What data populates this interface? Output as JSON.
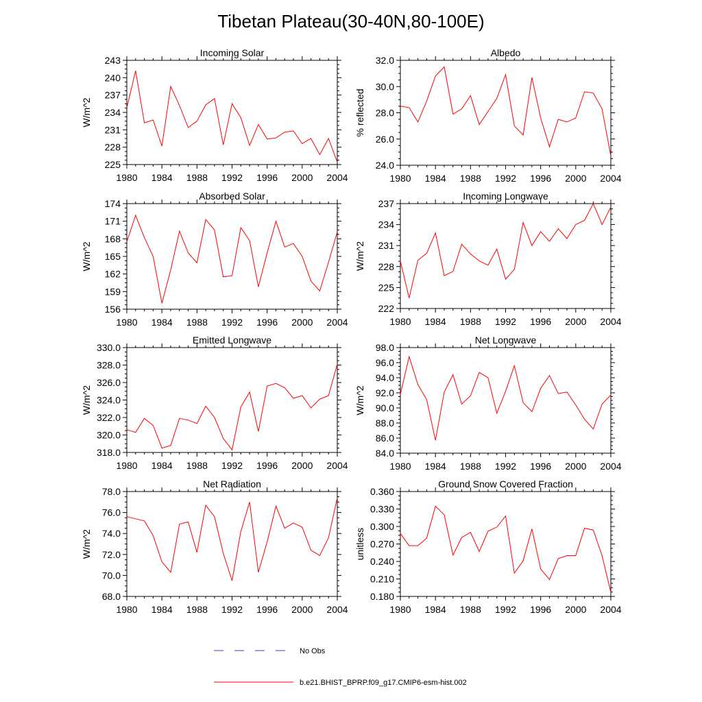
{
  "figure_title": "Tibetan Plateau(30-40N,80-100E)",
  "colors": {
    "model": "#ff0000",
    "obs": "#3a3acf",
    "axes": "#000000"
  },
  "legend": {
    "obs_label": "No Obs",
    "model_label": "b.e21.BHIST_BPRP.f09_g17.CMIP6-esm-hist.002"
  },
  "chart_data": [
    {
      "type": "line",
      "title": "Incoming Solar",
      "ylabel": "W/m^2",
      "xlim": [
        1980,
        2004
      ],
      "ylim": [
        225,
        243
      ],
      "x_ticks": [
        1980,
        1984,
        1988,
        1992,
        1996,
        2000,
        2004
      ],
      "y_ticks": [
        225,
        228,
        231,
        234,
        237,
        240,
        243
      ],
      "y_tick_labels": [
        "225",
        "228",
        "231",
        "234",
        "237",
        "240",
        "243"
      ],
      "x": [
        1980,
        1981,
        1982,
        1983,
        1984,
        1985,
        1986,
        1987,
        1988,
        1989,
        1990,
        1991,
        1992,
        1993,
        1994,
        1995,
        1996,
        1997,
        1998,
        1999,
        2000,
        2001,
        2002,
        2003,
        2004
      ],
      "series": [
        {
          "values": [
            234.8,
            241.2,
            232.2,
            232.7,
            228.2,
            238.5,
            235.2,
            231.4,
            232.5,
            235.3,
            236.4,
            228.4,
            235.5,
            233.1,
            228.3,
            231.9,
            229.4,
            229.6,
            230.6,
            230.8,
            228.6,
            229.5,
            226.7,
            229.5,
            225.4
          ]
        }
      ]
    },
    {
      "type": "line",
      "title": "Albedo",
      "ylabel": "% reflected",
      "xlim": [
        1980,
        2004
      ],
      "ylim": [
        24,
        32
      ],
      "x_ticks": [
        1980,
        1984,
        1988,
        1992,
        1996,
        2000,
        2004
      ],
      "y_ticks": [
        24,
        26,
        28,
        30,
        32
      ],
      "y_tick_labels": [
        "24.0",
        "26.0",
        "28.0",
        "30.0",
        "32.0"
      ],
      "x": [
        1980,
        1981,
        1982,
        1983,
        1984,
        1985,
        1986,
        1987,
        1988,
        1989,
        1990,
        1991,
        1992,
        1993,
        1994,
        1995,
        1996,
        1997,
        1998,
        1999,
        2000,
        2001,
        2002,
        2003,
        2004
      ],
      "series": [
        {
          "values": [
            28.5,
            28.4,
            27.3,
            28.9,
            30.8,
            31.5,
            27.9,
            28.3,
            29.3,
            27.1,
            28.1,
            29.1,
            30.9,
            27.0,
            26.3,
            30.7,
            27.6,
            25.4,
            27.5,
            27.3,
            27.6,
            29.6,
            29.5,
            28.3,
            24.7
          ]
        }
      ]
    },
    {
      "type": "line",
      "title": "Absorbed Solar",
      "ylabel": "W/m^2",
      "xlim": [
        1980,
        2004
      ],
      "ylim": [
        156,
        174
      ],
      "x_ticks": [
        1980,
        1984,
        1988,
        1992,
        1996,
        2000,
        2004
      ],
      "y_ticks": [
        156,
        159,
        162,
        165,
        168,
        171,
        174
      ],
      "y_tick_labels": [
        "156",
        "159",
        "162",
        "165",
        "168",
        "171",
        "174"
      ],
      "x": [
        1980,
        1981,
        1982,
        1983,
        1984,
        1985,
        1986,
        1987,
        1988,
        1989,
        1990,
        1991,
        1992,
        1993,
        1994,
        1995,
        1996,
        1997,
        1998,
        1999,
        2000,
        2001,
        2002,
        2003,
        2004
      ],
      "series": [
        {
          "values": [
            167.5,
            172.0,
            168.2,
            165.0,
            157.0,
            162.7,
            169.3,
            165.6,
            163.9,
            171.3,
            169.5,
            161.5,
            161.7,
            169.9,
            167.7,
            159.8,
            165.6,
            171.0,
            166.6,
            167.2,
            165.0,
            160.8,
            159.1,
            164.0,
            169.2
          ]
        }
      ]
    },
    {
      "type": "line",
      "title": "Incoming Longwave",
      "ylabel": "W/m^2",
      "xlim": [
        1980,
        2004
      ],
      "ylim": [
        222,
        237
      ],
      "x_ticks": [
        1980,
        1984,
        1988,
        1992,
        1996,
        2000,
        2004
      ],
      "y_ticks": [
        222,
        225,
        228,
        231,
        234,
        237
      ],
      "y_tick_labels": [
        "222",
        "225",
        "228",
        "231",
        "234",
        "237"
      ],
      "x": [
        1980,
        1981,
        1982,
        1983,
        1984,
        1985,
        1986,
        1987,
        1988,
        1989,
        1990,
        1991,
        1992,
        1993,
        1994,
        1995,
        1996,
        1997,
        1998,
        1999,
        2000,
        2001,
        2002,
        2003,
        2004
      ],
      "series": [
        {
          "values": [
            228.8,
            223.5,
            228.9,
            229.9,
            232.8,
            226.7,
            227.3,
            231.2,
            229.8,
            228.8,
            228.2,
            230.5,
            226.2,
            227.6,
            234.3,
            231.0,
            233.0,
            231.6,
            233.4,
            232.0,
            234.0,
            234.6,
            237.0,
            234.0,
            236.5
          ]
        }
      ]
    },
    {
      "type": "line",
      "title": "Emitted Longwave",
      "ylabel": "W/m^2",
      "xlim": [
        1980,
        2004
      ],
      "ylim": [
        318,
        330
      ],
      "x_ticks": [
        1980,
        1984,
        1988,
        1992,
        1996,
        2000,
        2004
      ],
      "y_ticks": [
        318,
        320,
        322,
        324,
        326,
        328,
        330
      ],
      "y_tick_labels": [
        "318.0",
        "320.0",
        "322.0",
        "324.0",
        "326.0",
        "328.0",
        "330.0"
      ],
      "x": [
        1980,
        1981,
        1982,
        1983,
        1984,
        1985,
        1986,
        1987,
        1988,
        1989,
        1990,
        1991,
        1992,
        1993,
        1994,
        1995,
        1996,
        1997,
        1998,
        1999,
        2000,
        2001,
        2002,
        2003,
        2004
      ],
      "series": [
        {
          "values": [
            320.6,
            320.3,
            321.9,
            321.1,
            318.5,
            318.8,
            321.9,
            321.7,
            321.3,
            323.3,
            322.0,
            319.6,
            318.3,
            323.2,
            324.9,
            320.4,
            325.6,
            325.9,
            325.4,
            324.2,
            324.5,
            323.1,
            324.1,
            324.5,
            328.1
          ]
        }
      ]
    },
    {
      "type": "line",
      "title": "Net Longwave",
      "ylabel": "W/m^2",
      "xlim": [
        1980,
        2004
      ],
      "ylim": [
        84,
        98
      ],
      "x_ticks": [
        1980,
        1984,
        1988,
        1992,
        1996,
        2000,
        2004
      ],
      "y_ticks": [
        84,
        86,
        88,
        90,
        92,
        94,
        96,
        98
      ],
      "y_tick_labels": [
        "84.0",
        "86.0",
        "88.0",
        "90.0",
        "92.0",
        "94.0",
        "96.0",
        "98.0"
      ],
      "x": [
        1980,
        1981,
        1982,
        1983,
        1984,
        1985,
        1986,
        1987,
        1988,
        1989,
        1990,
        1991,
        1992,
        1993,
        1994,
        1995,
        1996,
        1997,
        1998,
        1999,
        2000,
        2001,
        2002,
        2003,
        2004
      ],
      "series": [
        {
          "values": [
            91.8,
            96.8,
            93.1,
            91.1,
            85.7,
            92.1,
            94.4,
            90.5,
            91.6,
            94.7,
            94.0,
            89.3,
            92.2,
            95.6,
            90.7,
            89.5,
            92.6,
            94.3,
            91.9,
            92.1,
            90.4,
            88.5,
            87.2,
            90.5,
            91.7
          ]
        }
      ]
    },
    {
      "type": "line",
      "title": "Net Radiation",
      "ylabel": "W/m^2",
      "xlim": [
        1980,
        2004
      ],
      "ylim": [
        68,
        78
      ],
      "x_ticks": [
        1980,
        1984,
        1988,
        1992,
        1996,
        2000,
        2004
      ],
      "y_ticks": [
        68,
        70,
        72,
        74,
        76,
        78
      ],
      "y_tick_labels": [
        "68.0",
        "70.0",
        "72.0",
        "74.0",
        "76.0",
        "78.0"
      ],
      "x": [
        1980,
        1981,
        1982,
        1983,
        1984,
        1985,
        1986,
        1987,
        1988,
        1989,
        1990,
        1991,
        1992,
        1993,
        1994,
        1995,
        1996,
        1997,
        1998,
        1999,
        2000,
        2001,
        2002,
        2003,
        2004
      ],
      "series": [
        {
          "values": [
            75.6,
            75.4,
            75.2,
            73.8,
            71.3,
            70.3,
            74.9,
            75.1,
            72.2,
            76.7,
            75.6,
            72.1,
            69.5,
            74.2,
            77.0,
            70.3,
            73.2,
            76.6,
            74.5,
            75.0,
            74.6,
            72.4,
            71.9,
            73.6,
            77.4
          ]
        }
      ]
    },
    {
      "type": "line",
      "title": "Ground Snow Covered Fraction",
      "ylabel": "unitless",
      "xlim": [
        1980,
        2004
      ],
      "ylim": [
        0.18,
        0.36
      ],
      "x_ticks": [
        1980,
        1984,
        1988,
        1992,
        1996,
        2000,
        2004
      ],
      "y_ticks": [
        0.18,
        0.21,
        0.24,
        0.27,
        0.3,
        0.33,
        0.36
      ],
      "y_tick_labels": [
        "0.180",
        "0.210",
        "0.240",
        "0.270",
        "0.300",
        "0.330",
        "0.360"
      ],
      "x": [
        1980,
        1981,
        1982,
        1983,
        1984,
        1985,
        1986,
        1987,
        1988,
        1989,
        1990,
        1991,
        1992,
        1993,
        1994,
        1995,
        1996,
        1997,
        1998,
        1999,
        2000,
        2001,
        2002,
        2003,
        2004
      ],
      "series": [
        {
          "values": [
            0.288,
            0.267,
            0.267,
            0.28,
            0.335,
            0.32,
            0.251,
            0.281,
            0.29,
            0.257,
            0.292,
            0.299,
            0.318,
            0.22,
            0.241,
            0.296,
            0.227,
            0.209,
            0.245,
            0.25,
            0.25,
            0.297,
            0.294,
            0.25,
            0.187
          ]
        }
      ]
    }
  ]
}
